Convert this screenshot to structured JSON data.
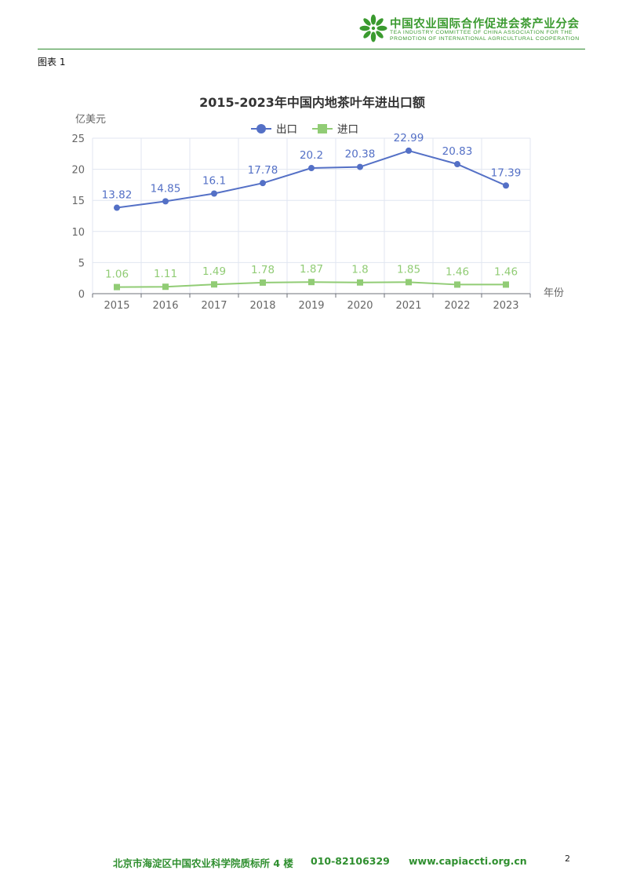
{
  "header": {
    "org_cn": "中国农业国际合作促进会茶产业分会",
    "org_en_line1": "TEA INDUSTRY COMMITTEE OF CHINA ASSOCIATION FOR THE",
    "org_en_line2": "PROMOTION OF INTERNATIONAL AGRICULTURAL COOPERATION",
    "logo_icon": "tea-leaf-logo-icon",
    "brand_color": "#3a9a2f"
  },
  "caption": "图表 1",
  "chart_data": {
    "type": "line",
    "title": "2015-2023年中国内地茶叶年进出口额",
    "ylabel": "亿美元",
    "xlabel": "年份",
    "ylim": [
      0,
      25
    ],
    "yticks": [
      0,
      5,
      10,
      15,
      20,
      25
    ],
    "categories": [
      "2015",
      "2016",
      "2017",
      "2018",
      "2019",
      "2020",
      "2021",
      "2022",
      "2023"
    ],
    "grid": true,
    "legend_position": "top-center",
    "series": [
      {
        "name": "出口",
        "values": [
          13.82,
          14.85,
          16.1,
          17.78,
          20.2,
          20.38,
          22.99,
          20.83,
          17.39
        ],
        "labels": [
          "13.82",
          "14.85",
          "16.1",
          "17.78",
          "20.2",
          "20.38",
          "22.99",
          "20.83",
          "17.39"
        ],
        "color": "#5470c6",
        "marker": "circle"
      },
      {
        "name": "进口",
        "values": [
          1.06,
          1.11,
          1.49,
          1.78,
          1.87,
          1.8,
          1.85,
          1.46,
          1.46
        ],
        "labels": [
          "1.06",
          "1.11",
          "1.49",
          "1.78",
          "1.87",
          "1.8",
          "1.85",
          "1.46",
          "1.46"
        ],
        "color": "#91cc75",
        "marker": "square"
      }
    ]
  },
  "footer": {
    "address": "北京市海淀区中国农业科学院质标所 4 楼",
    "phone": "010-82106329",
    "website": "www.capiaccti.org.cn",
    "page_number": "2"
  }
}
